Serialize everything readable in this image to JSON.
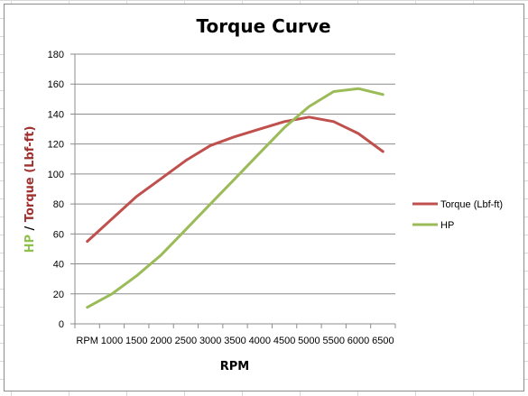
{
  "chart_data": {
    "type": "line",
    "title": "Torque Curve",
    "xlabel": "RPM",
    "ylabel_parts": [
      {
        "text": "HP",
        "color": "#92c04f"
      },
      {
        "text": " / ",
        "color": "#000000"
      },
      {
        "text": "Torque (Lbf-ft)",
        "color": "#a0302e"
      }
    ],
    "categories": [
      "RPM",
      "1000",
      "1500",
      "2000",
      "2500",
      "3000",
      "3500",
      "4000",
      "4500",
      "5000",
      "5500",
      "6000",
      "6500"
    ],
    "ylim": [
      0,
      180
    ],
    "yticks": [
      0,
      20,
      40,
      60,
      80,
      100,
      120,
      140,
      160,
      180
    ],
    "grid": true,
    "legend_position": "right",
    "series": [
      {
        "name": "Torque (Lbf-ft)",
        "color": "#c0504d",
        "values": [
          55,
          70,
          85,
          97,
          109,
          119,
          125,
          130,
          135,
          138,
          135,
          127,
          115
        ]
      },
      {
        "name": "HP",
        "color": "#9bbb59",
        "values": [
          11,
          20,
          32,
          46,
          63,
          80,
          97,
          114,
          131,
          145,
          155,
          157,
          153
        ]
      }
    ]
  }
}
